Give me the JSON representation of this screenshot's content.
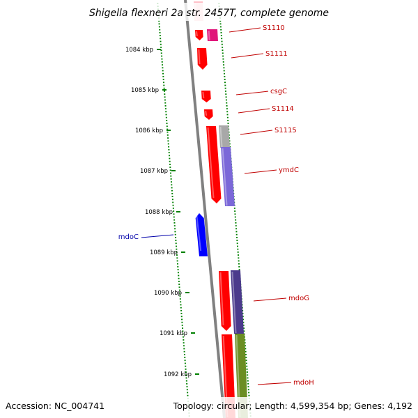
{
  "header": {
    "title": "Shigella flexneri 2a str. 2457T, complete genome"
  },
  "axis": {
    "unit_suffix": " kbp",
    "ticks": [
      1084,
      1085,
      1086,
      1087,
      1088,
      1089,
      1090,
      1091,
      1092
    ]
  },
  "genes": [
    {
      "name": "S1110",
      "color": "#c00000",
      "strand": "+"
    },
    {
      "name": "S1111",
      "color": "#c00000",
      "strand": "+"
    },
    {
      "name": "csgC",
      "color": "#c00000",
      "strand": "+"
    },
    {
      "name": "S1114",
      "color": "#c00000",
      "strand": "+"
    },
    {
      "name": "S1115",
      "color": "#c00000",
      "strand": "+"
    },
    {
      "name": "ymdC",
      "color": "#c00000",
      "strand": "+"
    },
    {
      "name": "mdoC",
      "color": "#0000aa",
      "strand": "-"
    },
    {
      "name": "mdoG",
      "color": "#c00000",
      "strand": "+"
    },
    {
      "name": "mdoH",
      "color": "#c00000",
      "strand": "+"
    }
  ],
  "footer": {
    "accession": "Accession: NC_004741",
    "summary": "Topology: circular; Length: 4,599,354 bp; Genes: 4,192"
  },
  "colors": {
    "forward_gene": "#ff0000",
    "reverse_gene": "#0000ff",
    "backbone": "#808080",
    "tick_marks": "#008000",
    "cog_pink": "#e0157a",
    "cog_gray": "#a8a8a8",
    "cog_violet": "#7b68d8",
    "cog_darkviolet": "#4b3a8c",
    "cog_olive": "#6b8e23",
    "faded_gene": "#ffc0c8"
  }
}
